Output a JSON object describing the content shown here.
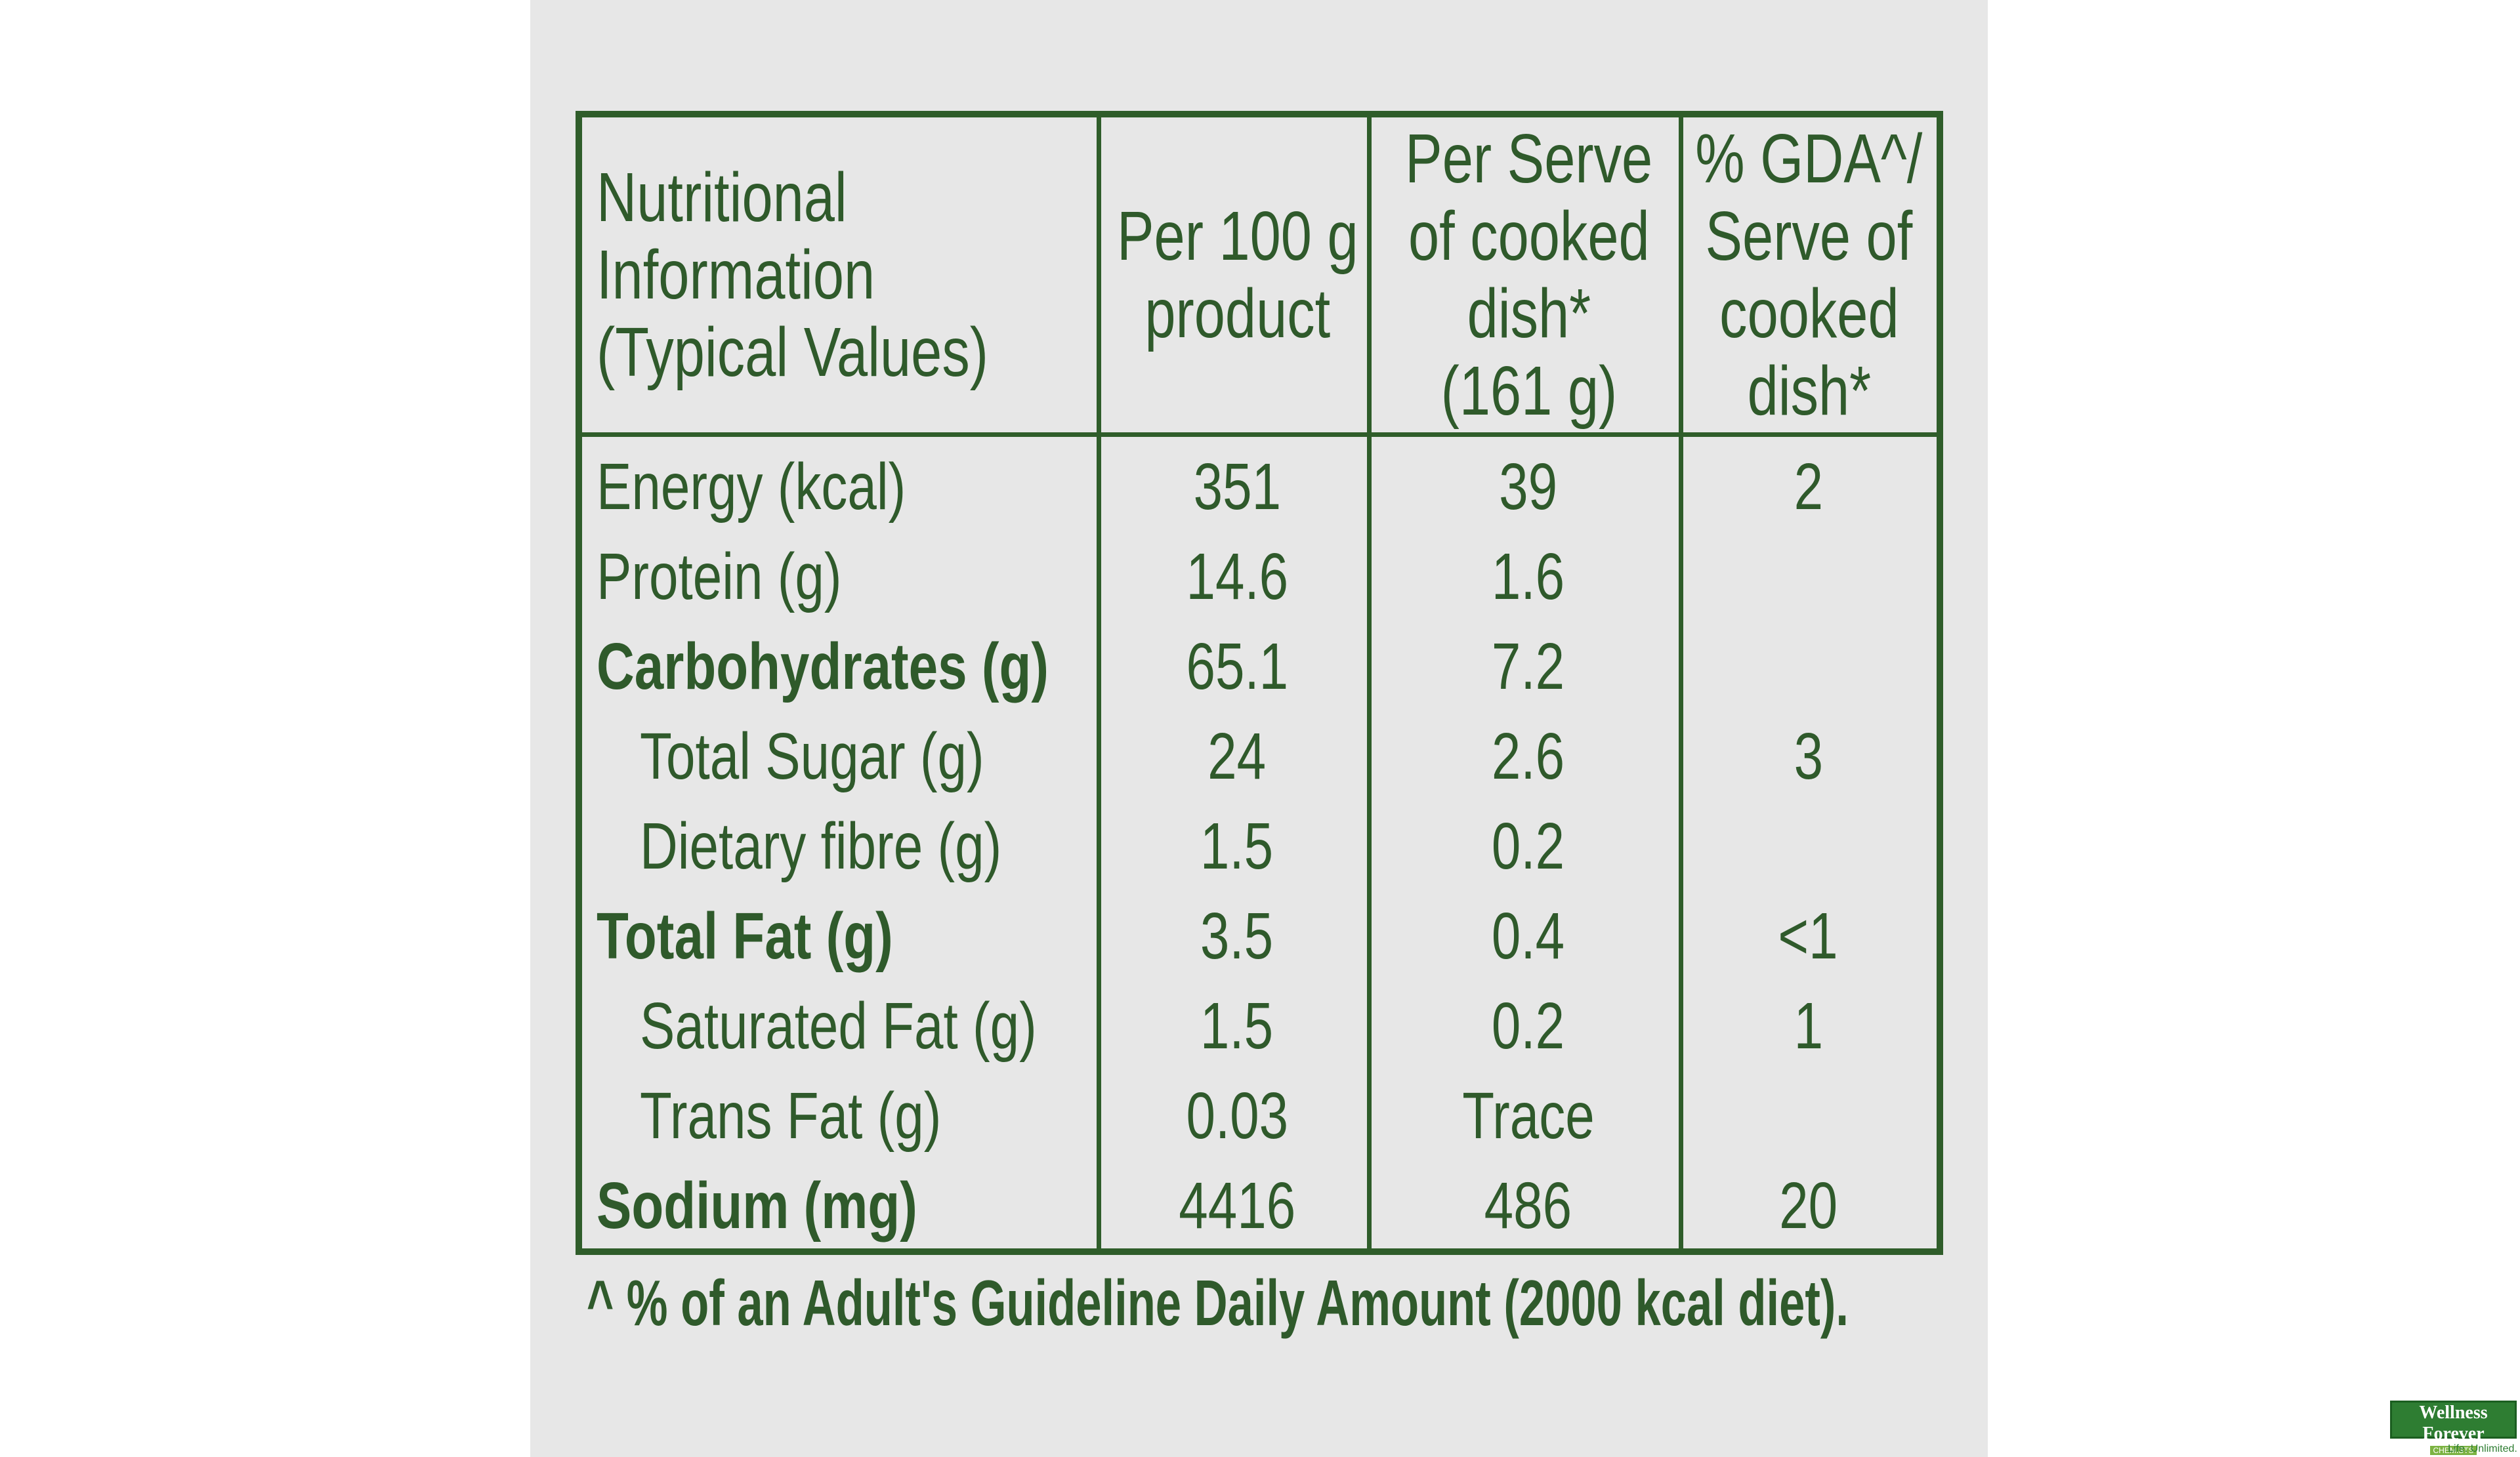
{
  "table": {
    "header": [
      [
        "Nutritional",
        "Information",
        "(Typical Values)"
      ],
      [
        "Per 100 g",
        "product"
      ],
      [
        "Per Serve",
        "of cooked",
        "dish*",
        "(161 g)"
      ],
      [
        "% GDA^/",
        "Serve of",
        "cooked",
        "dish*"
      ]
    ],
    "rows": [
      [
        "Energy (kcal)",
        "351",
        "39",
        "2"
      ],
      [
        "Protein (g)",
        "14.6",
        "1.6",
        null
      ],
      [
        "Carbohydrates (g)",
        "65.1",
        "7.2",
        null
      ],
      [
        "Total Sugar (g)",
        "24",
        "2.6",
        "3"
      ],
      [
        "Dietary fibre (g)",
        "1.5",
        "0.2",
        null
      ],
      [
        "Total Fat (g)",
        "3.5",
        "0.4",
        "<1"
      ],
      [
        "Saturated Fat (g)",
        "1.5",
        "0.2",
        "1"
      ],
      [
        "Trans Fat (g)",
        "0.03",
        "Trace",
        null
      ],
      [
        "Sodium (mg)",
        "4416",
        "486",
        "20"
      ]
    ]
  },
  "footnote": "^ % of an Adult's Guideline Daily Amount (2000 kcal diet).",
  "logo": {
    "name": "Wellness Forever",
    "sub": "CHEMISTS",
    "tagline": "Life. Unlimited."
  }
}
